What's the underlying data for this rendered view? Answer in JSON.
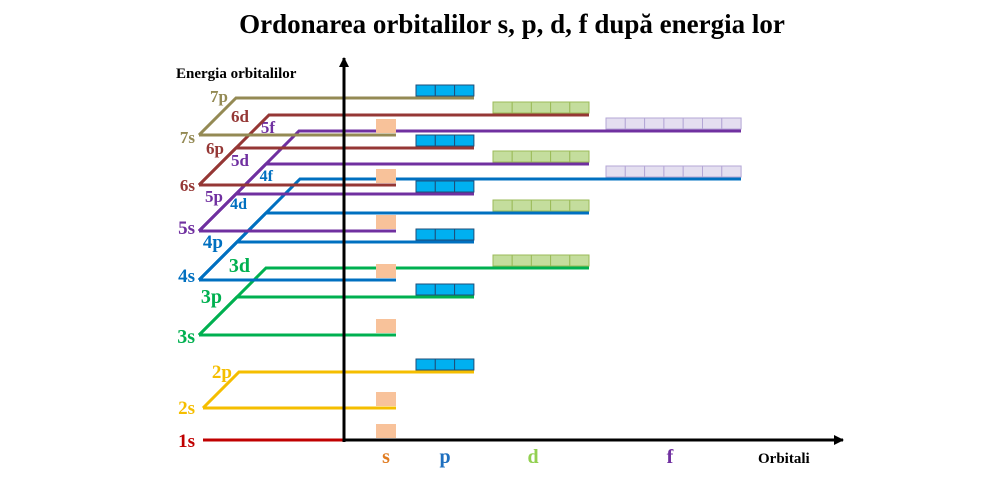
{
  "title": "Ordonarea orbitalilor s, p, d, f după energia lor",
  "y_axis_label": "Energia orbitalilor",
  "x_axis_label": "Orbitali",
  "orbital_types": [
    {
      "label": "s",
      "color": "#e07b20",
      "boxes": 1,
      "fill": "#f8c29a"
    },
    {
      "label": "p",
      "color": "#1e6fbf",
      "boxes": 3,
      "fill": "#00b0f0"
    },
    {
      "label": "d",
      "color": "#92d050",
      "boxes": 5,
      "fill": "#c4dd9d"
    },
    {
      "label": "f",
      "color": "#7030a0",
      "boxes": 7,
      "fill": "#e4dff0"
    }
  ],
  "levels": [
    {
      "label": "1s",
      "color": "#c00000"
    },
    {
      "label": "2s",
      "color": "#f5be00"
    },
    {
      "label": "2p",
      "color": "#f5be00"
    },
    {
      "label": "3s",
      "color": "#00b050"
    },
    {
      "label": "3p",
      "color": "#00b050"
    },
    {
      "label": "3d",
      "color": "#00b050"
    },
    {
      "label": "4s",
      "color": "#0070c0"
    },
    {
      "label": "4p",
      "color": "#0070c0"
    },
    {
      "label": "4d",
      "color": "#0070c0"
    },
    {
      "label": "4f",
      "color": "#0070c0"
    },
    {
      "label": "5s",
      "color": "#7030a0"
    },
    {
      "label": "5p",
      "color": "#7030a0"
    },
    {
      "label": "5d",
      "color": "#7030a0"
    },
    {
      "label": "5f",
      "color": "#7030a0"
    },
    {
      "label": "6s",
      "color": "#953735"
    },
    {
      "label": "6p",
      "color": "#953735"
    },
    {
      "label": "6d",
      "color": "#953735"
    },
    {
      "label": "7s",
      "color": "#948a54"
    },
    {
      "label": "7p",
      "color": "#948a54"
    }
  ]
}
